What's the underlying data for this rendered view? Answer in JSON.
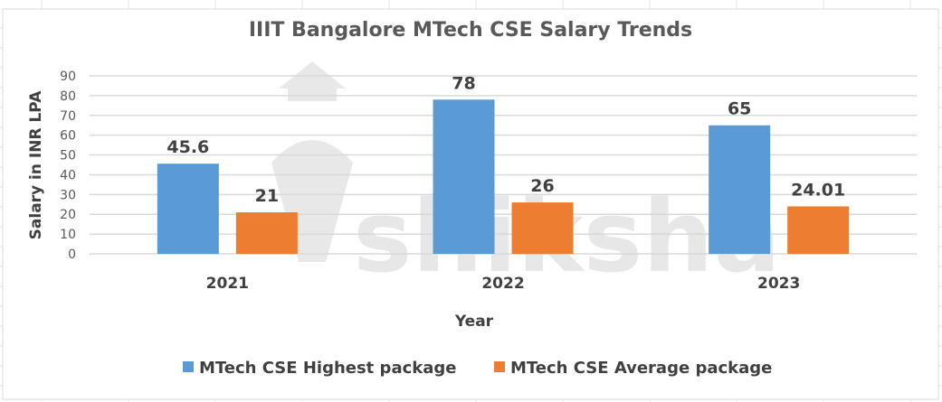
{
  "chart_data": {
    "type": "bar",
    "title": "IIIT Bangalore MTech CSE Salary Trends",
    "xlabel": "Year",
    "ylabel": "Salary in INR LPA",
    "categories": [
      "2021",
      "2022",
      "2023"
    ],
    "series": [
      {
        "name": "MTech CSE Highest package",
        "values": [
          45.6,
          78,
          65
        ],
        "labels": [
          "45.6",
          "78",
          "65"
        ],
        "color": "#5B9BD5"
      },
      {
        "name": "MTech CSE Average package",
        "values": [
          21,
          26,
          24.01
        ],
        "labels": [
          "21",
          "26",
          "24.01"
        ],
        "color": "#ED7D31"
      }
    ],
    "ylim": [
      0,
      90
    ],
    "yticks": [
      0,
      10,
      20,
      30,
      40,
      50,
      60,
      70,
      80,
      90
    ],
    "grid": true,
    "legend": "bottom",
    "watermark": "shiksha"
  }
}
